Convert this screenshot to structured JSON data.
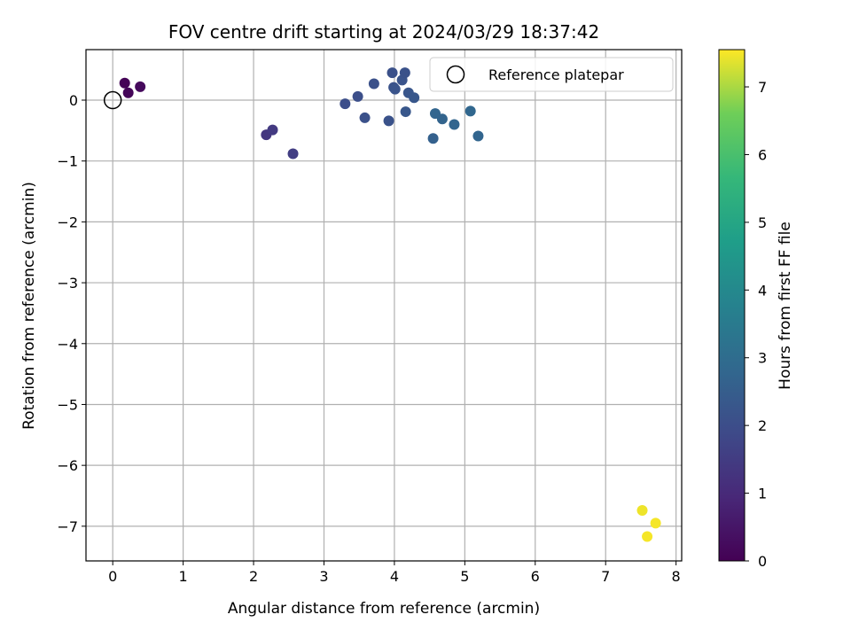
{
  "chart_data": {
    "type": "scatter",
    "title": "FOV centre drift starting at 2024/03/29 18:37:42",
    "xlabel": "Angular distance from reference (arcmin)",
    "ylabel": "Rotation from reference (arcmin)",
    "xlim": [
      -0.38,
      8.08
    ],
    "ylim": [
      -7.57,
      0.83
    ],
    "xticks": [
      0,
      1,
      2,
      3,
      4,
      5,
      6,
      7,
      8
    ],
    "yticks": [
      0,
      -1,
      -2,
      -3,
      -4,
      -5,
      -6,
      -7
    ],
    "grid": true,
    "colormap": "viridis",
    "colorbar": {
      "label": "Hours from first FF file",
      "range": [
        0,
        7.55
      ],
      "ticks": [
        0,
        1,
        2,
        3,
        4,
        5,
        6,
        7
      ]
    },
    "legend": {
      "position": "top-right",
      "entries": [
        "Reference platepar"
      ]
    },
    "reference_point": {
      "x": 0,
      "y": 0
    },
    "points": [
      {
        "x": 0.17,
        "y": 0.28,
        "hours": 0.05
      },
      {
        "x": 0.22,
        "y": 0.12,
        "hours": 0.1
      },
      {
        "x": 0.39,
        "y": 0.22,
        "hours": 0.2
      },
      {
        "x": 2.18,
        "y": -0.57,
        "hours": 1.35
      },
      {
        "x": 2.27,
        "y": -0.49,
        "hours": 1.45
      },
      {
        "x": 2.56,
        "y": -0.88,
        "hours": 1.55
      },
      {
        "x": 3.3,
        "y": -0.06,
        "hours": 2.0
      },
      {
        "x": 3.48,
        "y": 0.06,
        "hours": 2.05
      },
      {
        "x": 3.58,
        "y": -0.29,
        "hours": 2.1
      },
      {
        "x": 3.71,
        "y": 0.27,
        "hours": 2.1
      },
      {
        "x": 3.92,
        "y": -0.34,
        "hours": 2.15
      },
      {
        "x": 3.97,
        "y": 0.45,
        "hours": 2.1
      },
      {
        "x": 3.99,
        "y": 0.21,
        "hours": 2.15
      },
      {
        "x": 4.01,
        "y": 0.18,
        "hours": 2.2
      },
      {
        "x": 4.11,
        "y": 0.33,
        "hours": 2.2
      },
      {
        "x": 4.15,
        "y": 0.45,
        "hours": 2.15
      },
      {
        "x": 4.16,
        "y": -0.19,
        "hours": 2.3
      },
      {
        "x": 4.2,
        "y": 0.12,
        "hours": 2.25
      },
      {
        "x": 4.28,
        "y": 0.04,
        "hours": 2.3
      },
      {
        "x": 4.55,
        "y": -0.63,
        "hours": 2.6
      },
      {
        "x": 4.58,
        "y": -0.22,
        "hours": 2.75
      },
      {
        "x": 4.68,
        "y": -0.31,
        "hours": 2.7
      },
      {
        "x": 4.85,
        "y": -0.4,
        "hours": 2.75
      },
      {
        "x": 5.08,
        "y": -0.18,
        "hours": 2.8
      },
      {
        "x": 5.19,
        "y": -0.59,
        "hours": 2.75
      },
      {
        "x": 7.52,
        "y": -6.74,
        "hours": 7.45
      },
      {
        "x": 7.59,
        "y": -7.17,
        "hours": 7.5
      },
      {
        "x": 7.71,
        "y": -6.95,
        "hours": 7.5
      }
    ]
  }
}
